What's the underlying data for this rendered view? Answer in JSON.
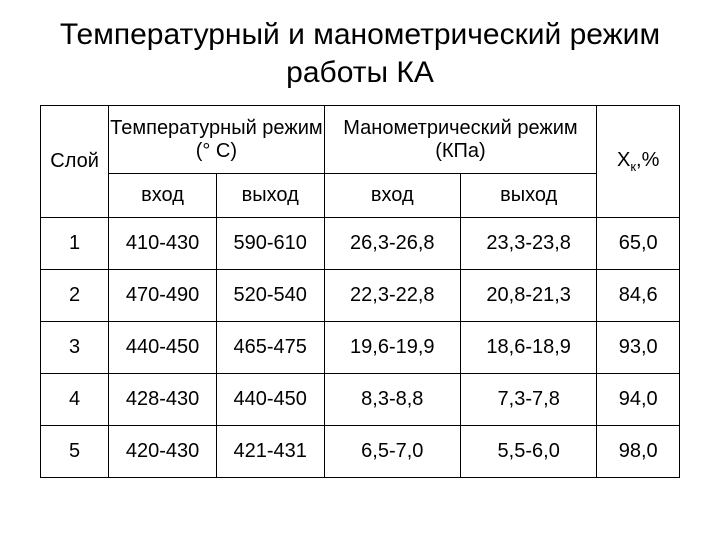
{
  "title": "Температурный и манометрический режим работы КА",
  "headers": {
    "layer": "Слой",
    "temp_group": "Температурный режим  (° С)",
    "mano_group": "Манометрический режим (КПа)",
    "xk_prefix": "Х",
    "xk_sub": "к",
    "xk_suffix": ",%",
    "in": "вход",
    "out": "выход"
  },
  "rows": [
    {
      "layer": "1",
      "temp_in": "410-430",
      "temp_out": "590-610",
      "mano_in": "26,3-26,8",
      "mano_out": "23,3-23,8",
      "xk": "65,0"
    },
    {
      "layer": "2",
      "temp_in": "470-490",
      "temp_out": "520-540",
      "mano_in": "22,3-22,8",
      "mano_out": "20,8-21,3",
      "xk": "84,6"
    },
    {
      "layer": "3",
      "temp_in": "440-450",
      "temp_out": "465-475",
      "mano_in": "19,6-19,9",
      "mano_out": "18,6-18,9",
      "xk": "93,0"
    },
    {
      "layer": "4",
      "temp_in": "428-430",
      "temp_out": "440-450",
      "mano_in": "8,3-8,8",
      "mano_out": "7,3-7,8",
      "xk": "94,0"
    },
    {
      "layer": "5",
      "temp_in": "420-430",
      "temp_out": "421-431",
      "mano_in": "6,5-7,0",
      "mano_out": "5,5-6,0",
      "xk": "98,0"
    }
  ]
}
